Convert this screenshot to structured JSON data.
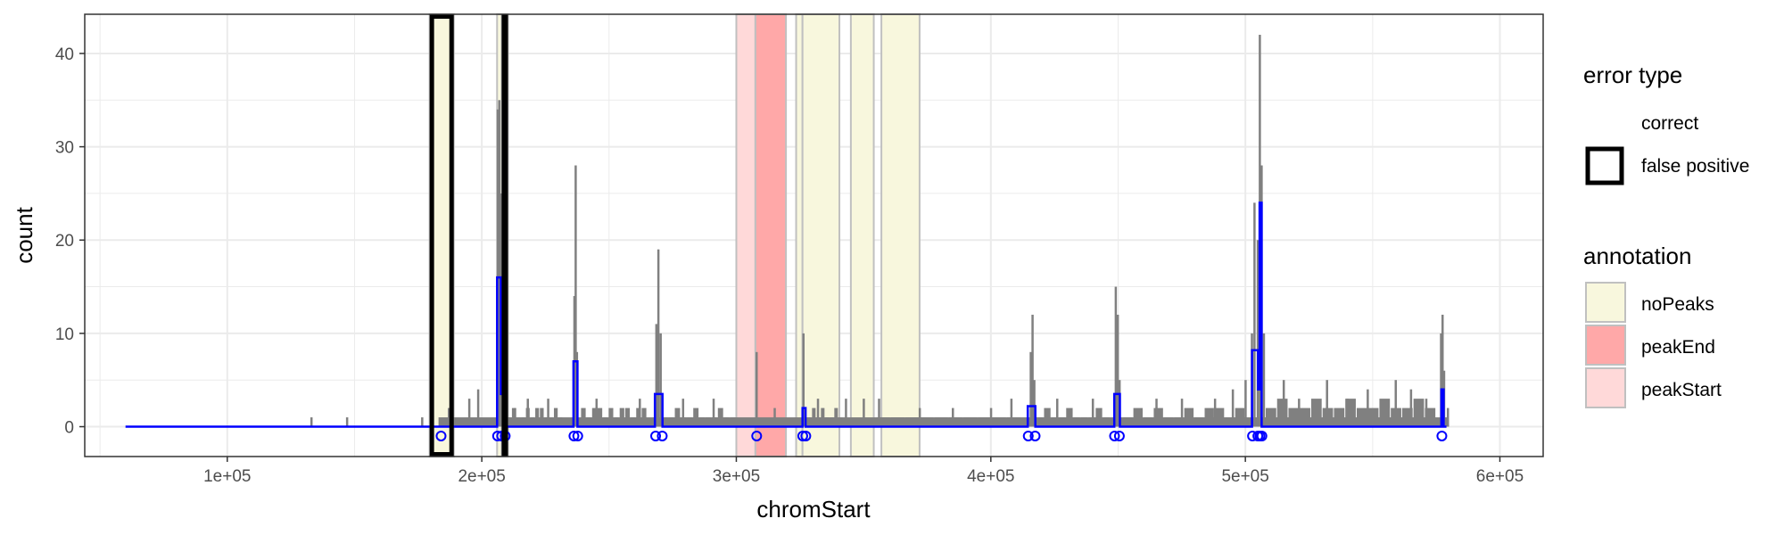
{
  "chart_data": {
    "type": "line",
    "xlabel": "chromStart",
    "ylabel": "count",
    "xlim": [
      44000,
      617000
    ],
    "ylim": [
      -3.2,
      44.2
    ],
    "x_ticks": [
      100000,
      200000,
      300000,
      400000,
      500000,
      600000
    ],
    "x_tick_labels": [
      "1e+05",
      "2e+05",
      "3e+05",
      "4e+05",
      "5e+05",
      "6e+05"
    ],
    "y_ticks": [
      0,
      10,
      20,
      30,
      40
    ],
    "y_tick_labels": [
      "0",
      "10",
      "20",
      "30",
      "40"
    ],
    "grid": true,
    "legend_position": "right",
    "annotation_regions": [
      {
        "start": 179500,
        "end": 189000,
        "annotation": "noPeaks",
        "status": "false positive"
      },
      {
        "start": 206000,
        "end": 208000,
        "annotation": "noPeaks",
        "status": "correct"
      },
      {
        "start": 207800,
        "end": 210300,
        "annotation": "peakStart",
        "status": "false positive"
      },
      {
        "start": 300000,
        "end": 307500,
        "annotation": "peakStart",
        "status": "correct"
      },
      {
        "start": 307500,
        "end": 319500,
        "annotation": "peakEnd",
        "status": "correct"
      },
      {
        "start": 323500,
        "end": 326000,
        "annotation": "noPeaks",
        "status": "correct"
      },
      {
        "start": 326000,
        "end": 340500,
        "annotation": "noPeaks",
        "status": "correct"
      },
      {
        "start": 345000,
        "end": 354000,
        "annotation": "noPeaks",
        "status": "correct"
      },
      {
        "start": 357000,
        "end": 372000,
        "annotation": "noPeaks",
        "status": "correct"
      }
    ],
    "coverage_peaks": [
      {
        "x": 133000,
        "y": 1
      },
      {
        "x": 147000,
        "y": 1
      },
      {
        "x": 176500,
        "y": 1
      },
      {
        "x": 187000,
        "y": 2
      },
      {
        "x": 195000,
        "y": 3
      },
      {
        "x": 198500,
        "y": 4
      },
      {
        "x": 206200,
        "y": 34
      },
      {
        "x": 206800,
        "y": 35
      },
      {
        "x": 207400,
        "y": 25
      },
      {
        "x": 208000,
        "y": 15
      },
      {
        "x": 209000,
        "y": 6
      },
      {
        "x": 213000,
        "y": 2
      },
      {
        "x": 218000,
        "y": 3
      },
      {
        "x": 226000,
        "y": 3
      },
      {
        "x": 236300,
        "y": 14
      },
      {
        "x": 236800,
        "y": 28
      },
      {
        "x": 237300,
        "y": 8
      },
      {
        "x": 245000,
        "y": 3
      },
      {
        "x": 262000,
        "y": 3
      },
      {
        "x": 268500,
        "y": 11
      },
      {
        "x": 269300,
        "y": 19
      },
      {
        "x": 270200,
        "y": 10
      },
      {
        "x": 279000,
        "y": 3
      },
      {
        "x": 291000,
        "y": 3
      },
      {
        "x": 307900,
        "y": 8
      },
      {
        "x": 315000,
        "y": 2
      },
      {
        "x": 326300,
        "y": 10
      },
      {
        "x": 332000,
        "y": 3
      },
      {
        "x": 343000,
        "y": 3
      },
      {
        "x": 350000,
        "y": 3
      },
      {
        "x": 356000,
        "y": 3
      },
      {
        "x": 372000,
        "y": 2
      },
      {
        "x": 385000,
        "y": 2
      },
      {
        "x": 400000,
        "y": 2
      },
      {
        "x": 408000,
        "y": 3
      },
      {
        "x": 415600,
        "y": 8
      },
      {
        "x": 416300,
        "y": 12
      },
      {
        "x": 417000,
        "y": 5
      },
      {
        "x": 426000,
        "y": 3
      },
      {
        "x": 440000,
        "y": 3
      },
      {
        "x": 449000,
        "y": 15
      },
      {
        "x": 449800,
        "y": 12
      },
      {
        "x": 450500,
        "y": 5
      },
      {
        "x": 465000,
        "y": 3
      },
      {
        "x": 475000,
        "y": 3
      },
      {
        "x": 488000,
        "y": 3
      },
      {
        "x": 495000,
        "y": 4
      },
      {
        "x": 500000,
        "y": 5
      },
      {
        "x": 502500,
        "y": 10
      },
      {
        "x": 503500,
        "y": 24
      },
      {
        "x": 504800,
        "y": 20
      },
      {
        "x": 505600,
        "y": 42
      },
      {
        "x": 506300,
        "y": 28
      },
      {
        "x": 507200,
        "y": 10
      },
      {
        "x": 515000,
        "y": 5
      },
      {
        "x": 521000,
        "y": 3
      },
      {
        "x": 532000,
        "y": 5
      },
      {
        "x": 540000,
        "y": 3
      },
      {
        "x": 548000,
        "y": 4
      },
      {
        "x": 559000,
        "y": 5
      },
      {
        "x": 565000,
        "y": 4
      },
      {
        "x": 571000,
        "y": 3
      },
      {
        "x": 576800,
        "y": 10
      },
      {
        "x": 577400,
        "y": 12
      },
      {
        "x": 578000,
        "y": 6
      },
      {
        "x": 579500,
        "y": 2
      }
    ],
    "coverage_baseline": [
      {
        "start": 180000,
        "end": 181000,
        "y": 1
      },
      {
        "start": 183000,
        "end": 580000,
        "y": 1
      }
    ],
    "coverage_noise": [
      {
        "start": 210000,
        "end": 232000,
        "levels": [
          1,
          2,
          1,
          1,
          2,
          1,
          2,
          2,
          1,
          1,
          2,
          1
        ]
      },
      {
        "start": 239000,
        "end": 265000,
        "levels": [
          2,
          1,
          2,
          2,
          1,
          2,
          1,
          2,
          2,
          1,
          2,
          2
        ]
      },
      {
        "start": 271000,
        "end": 300000,
        "levels": [
          1,
          1,
          2,
          1,
          1,
          2,
          1,
          1,
          1,
          2,
          1,
          1
        ]
      },
      {
        "start": 328000,
        "end": 342000,
        "levels": [
          1,
          2,
          1,
          2,
          1,
          1,
          2,
          1
        ]
      },
      {
        "start": 355000,
        "end": 412000,
        "levels": [
          1,
          1,
          1,
          1,
          1,
          1,
          1,
          1,
          1,
          1
        ]
      },
      {
        "start": 418000,
        "end": 447000,
        "levels": [
          1,
          2,
          1,
          1,
          2,
          1,
          1,
          1,
          2,
          1
        ]
      },
      {
        "start": 452000,
        "end": 500000,
        "levels": [
          1,
          2,
          1,
          2,
          1,
          1,
          2,
          1,
          2,
          2,
          1,
          2
        ]
      },
      {
        "start": 508000,
        "end": 575000,
        "levels": [
          2,
          3,
          2,
          2,
          3,
          2,
          2,
          3,
          2,
          2,
          3,
          2,
          2,
          3,
          2
        ]
      }
    ],
    "model_segments": [
      {
        "start": 60000,
        "end": 206000,
        "y": 0
      },
      {
        "start": 206000,
        "end": 207500,
        "y": 16
      },
      {
        "start": 207500,
        "end": 209000,
        "y": 3.5
      },
      {
        "start": 209000,
        "end": 236000,
        "y": 0
      },
      {
        "start": 236000,
        "end": 237600,
        "y": 7
      },
      {
        "start": 237600,
        "end": 268000,
        "y": 0
      },
      {
        "start": 268000,
        "end": 271000,
        "y": 3.5
      },
      {
        "start": 271000,
        "end": 326000,
        "y": 0
      },
      {
        "start": 326000,
        "end": 327200,
        "y": 2
      },
      {
        "start": 327200,
        "end": 414500,
        "y": 0
      },
      {
        "start": 414500,
        "end": 417500,
        "y": 2.2
      },
      {
        "start": 417500,
        "end": 448500,
        "y": 0
      },
      {
        "start": 448500,
        "end": 450700,
        "y": 3.5
      },
      {
        "start": 450700,
        "end": 502600,
        "y": 0
      },
      {
        "start": 502600,
        "end": 505000,
        "y": 8.2
      },
      {
        "start": 505000,
        "end": 505600,
        "y": 4
      },
      {
        "start": 505600,
        "end": 506400,
        "y": 24
      },
      {
        "start": 506400,
        "end": 577000,
        "y": 0
      },
      {
        "start": 577000,
        "end": 577900,
        "y": 4
      },
      {
        "start": 577900,
        "end": 579000,
        "y": 0
      }
    ],
    "peak_markers": [
      {
        "x": 184000,
        "y": -1
      },
      {
        "x": 206200,
        "y": -1
      },
      {
        "x": 207800,
        "y": -1
      },
      {
        "x": 209200,
        "y": -1
      },
      {
        "x": 236200,
        "y": -1
      },
      {
        "x": 237700,
        "y": -1
      },
      {
        "x": 268300,
        "y": -1
      },
      {
        "x": 270900,
        "y": -1
      },
      {
        "x": 308000,
        "y": -1
      },
      {
        "x": 326100,
        "y": -1
      },
      {
        "x": 327300,
        "y": -1
      },
      {
        "x": 414700,
        "y": -1
      },
      {
        "x": 417400,
        "y": -1
      },
      {
        "x": 448600,
        "y": -1
      },
      {
        "x": 450500,
        "y": -1
      },
      {
        "x": 502800,
        "y": -1
      },
      {
        "x": 504900,
        "y": -1
      },
      {
        "x": 505700,
        "y": -1
      },
      {
        "x": 506500,
        "y": -1
      },
      {
        "x": 577200,
        "y": -1
      }
    ],
    "colors": {
      "coverage": "#808080",
      "model": "#0000ff",
      "grid": "#ebebeb",
      "noPeaks": "#f8f7dd",
      "peakEnd": "#ffa8a8",
      "peakStart": "#ffd9d9",
      "region_border": "#c0c0c0",
      "false_positive_border": "#000000"
    },
    "legend": {
      "error_type": {
        "title": "error type",
        "items": [
          {
            "label": "correct",
            "status": "correct"
          },
          {
            "label": "false positive",
            "status": "false positive"
          }
        ]
      },
      "annotation": {
        "title": "annotation",
        "items": [
          {
            "label": "noPeaks",
            "key": "noPeaks"
          },
          {
            "label": "peakEnd",
            "key": "peakEnd"
          },
          {
            "label": "peakStart",
            "key": "peakStart"
          }
        ]
      }
    }
  }
}
